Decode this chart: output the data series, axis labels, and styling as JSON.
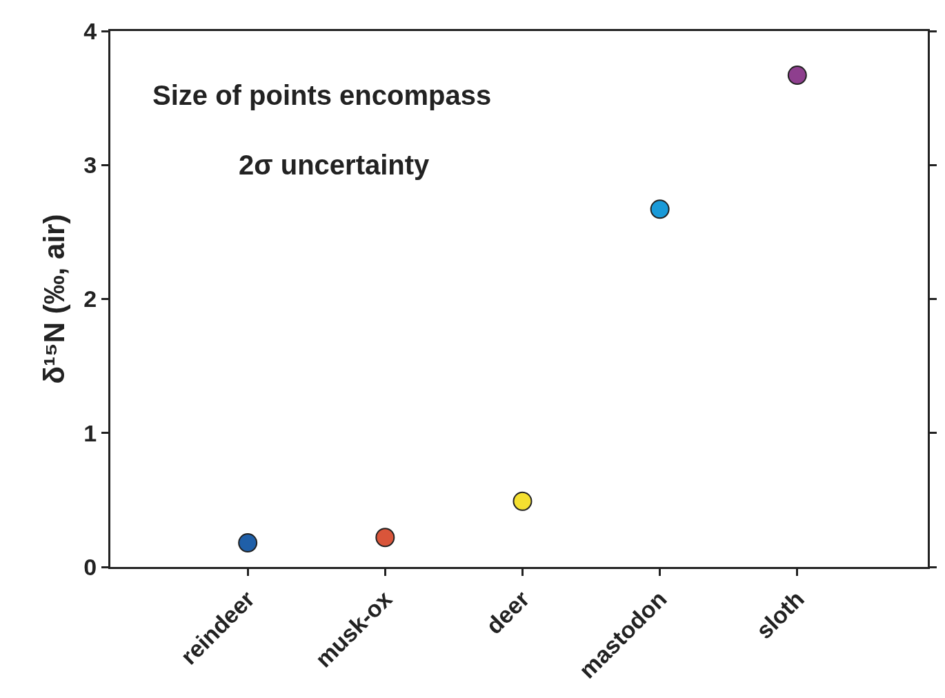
{
  "chart_data": {
    "type": "scatter",
    "ylabel": "δ¹⁵N (‰, air)",
    "categories": [
      "reindeer",
      "musk-ox",
      "deer",
      "mastodon",
      "sloth"
    ],
    "values": [
      0.18,
      0.22,
      0.49,
      2.67,
      3.67
    ],
    "colors": [
      "#1f5fa8",
      "#d9553a",
      "#f5e030",
      "#1a9ad8",
      "#8e3f8e"
    ],
    "ylim": [
      0,
      4
    ],
    "yticks": [
      0,
      1,
      2,
      3,
      4
    ],
    "annotations": [
      "Size of points encompass",
      "2σ uncertainty"
    ],
    "marker": "circle"
  }
}
